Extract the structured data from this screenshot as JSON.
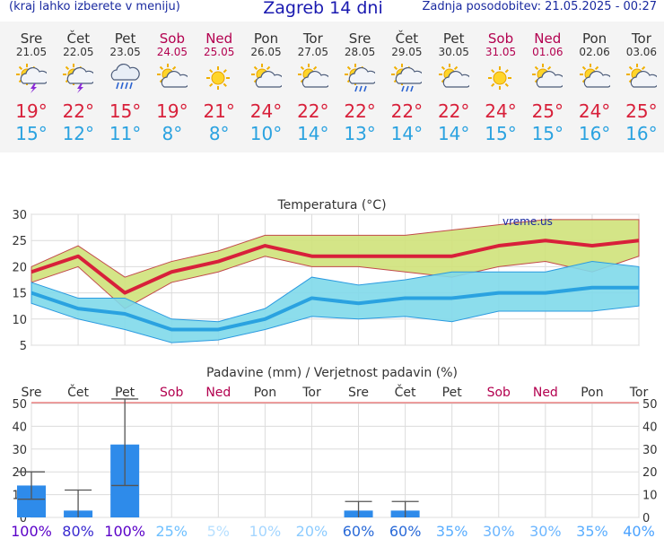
{
  "header": {
    "note": "(kraj lahko izberete v meniju)",
    "title": "Zagreb 14 dni",
    "updated": "Zadnja posodobitev: 21.05.2025 - 00:27"
  },
  "colors": {
    "max": "#d8203a",
    "min": "#2aa2e0",
    "weekend": "#b3004f",
    "temp_band": "#cfe27a",
    "min_band": "#7fd9ea",
    "bar": "#2e8bea"
  },
  "days": [
    {
      "name": "Sre",
      "date": "21.05",
      "icon": "sun-cloud-thunder-icon",
      "max": "19°",
      "min": "15°",
      "weekend": false
    },
    {
      "name": "Čet",
      "date": "22.05",
      "icon": "sun-cloud-thunder-icon",
      "max": "22°",
      "min": "12°",
      "weekend": false
    },
    {
      "name": "Pet",
      "date": "23.05",
      "icon": "cloud-rain-icon",
      "max": "15°",
      "min": "11°",
      "weekend": false
    },
    {
      "name": "Sob",
      "date": "24.05",
      "icon": "sun-cloud-icon",
      "max": "19°",
      "min": "8°",
      "weekend": true
    },
    {
      "name": "Ned",
      "date": "25.05",
      "icon": "sun-icon",
      "max": "21°",
      "min": "8°",
      "weekend": true
    },
    {
      "name": "Pon",
      "date": "26.05",
      "icon": "sun-cloud-icon",
      "max": "24°",
      "min": "10°",
      "weekend": false
    },
    {
      "name": "Tor",
      "date": "27.05",
      "icon": "sun-cloud-icon",
      "max": "22°",
      "min": "14°",
      "weekend": false
    },
    {
      "name": "Sre",
      "date": "28.05",
      "icon": "sun-cloud-rain-icon",
      "max": "22°",
      "min": "13°",
      "weekend": false
    },
    {
      "name": "Čet",
      "date": "29.05",
      "icon": "sun-cloud-rain-icon",
      "max": "22°",
      "min": "14°",
      "weekend": false
    },
    {
      "name": "Pet",
      "date": "30.05",
      "icon": "sun-cloud-icon",
      "max": "22°",
      "min": "14°",
      "weekend": false
    },
    {
      "name": "Sob",
      "date": "31.05",
      "icon": "sun-icon",
      "max": "24°",
      "min": "15°",
      "weekend": true
    },
    {
      "name": "Ned",
      "date": "01.06",
      "icon": "sun-cloud-icon",
      "max": "25°",
      "min": "15°",
      "weekend": true
    },
    {
      "name": "Pon",
      "date": "02.06",
      "icon": "sun-cloud-icon",
      "max": "24°",
      "min": "16°",
      "weekend": false
    },
    {
      "name": "Tor",
      "date": "03.06",
      "icon": "sun-cloud-icon",
      "max": "25°",
      "min": "16°",
      "weekend": false
    }
  ],
  "chart_data": [
    {
      "type": "line",
      "title": "Temperatura (°C)",
      "watermark": "vreme.us",
      "ylim": [
        5,
        30
      ],
      "yticks": [
        5,
        10,
        15,
        20,
        25,
        30
      ],
      "x": [
        0,
        1,
        2,
        3,
        4,
        5,
        6,
        7,
        8,
        9,
        10,
        11,
        12,
        13
      ],
      "series": [
        {
          "values": [
            19,
            22,
            15,
            19,
            21,
            24,
            22,
            22,
            22,
            22,
            24,
            25,
            24,
            25
          ]
        },
        {
          "values": [
            15,
            12,
            11,
            8,
            8,
            10,
            14,
            13,
            14,
            14,
            15,
            15,
            16,
            16
          ]
        },
        {
          "values_upper": [
            20,
            24,
            18,
            21,
            23,
            26,
            26,
            26,
            26,
            27,
            28,
            29,
            29,
            29
          ],
          "values_lower": [
            17,
            20,
            12,
            17,
            19,
            22,
            20,
            20,
            19,
            18,
            20,
            21,
            19,
            22
          ]
        },
        {
          "values_upper": [
            17,
            14,
            14,
            10,
            9.5,
            12,
            18,
            16.5,
            17.5,
            19,
            19,
            19,
            21,
            20
          ],
          "values_lower": [
            13,
            10,
            8,
            5.5,
            6,
            8,
            10.5,
            10,
            10.5,
            9.5,
            11.5,
            11.5,
            11.5,
            12.5
          ]
        }
      ],
      "grid": true
    },
    {
      "type": "bar",
      "title": "Padavine (mm) / Verjetnost padavin (%)",
      "ylim": [
        0,
        50
      ],
      "yticks": [
        0,
        10,
        20,
        30,
        40,
        50
      ],
      "categories": [
        "Sre",
        "Čet",
        "Pet",
        "Sob",
        "Ned",
        "Pon",
        "Tor",
        "Sre",
        "Čet",
        "Pet",
        "Sob",
        "Ned",
        "Pon",
        "Tor"
      ],
      "values": [
        14,
        3,
        32,
        0,
        0,
        0,
        0,
        3,
        3,
        0,
        0,
        0,
        0,
        0
      ],
      "error_high": [
        20,
        12,
        52,
        0,
        0,
        0,
        0,
        7,
        7,
        0,
        0,
        0,
        0,
        0
      ],
      "error_low": [
        8,
        0,
        14,
        0,
        0,
        0,
        0,
        0,
        0,
        0,
        0,
        0,
        0,
        0
      ],
      "probabilities": [
        "100%",
        "80%",
        "100%",
        "25%",
        "5%",
        "10%",
        "20%",
        "60%",
        "60%",
        "35%",
        "30%",
        "30%",
        "35%",
        "40%"
      ],
      "prob_colors": [
        "#5a00c8",
        "#3a2ad0",
        "#5a00c8",
        "#6fc0ff",
        "#b8e0ff",
        "#a5d6ff",
        "#8dccff",
        "#2a6ad8",
        "#2a6ad8",
        "#5aaeff",
        "#6cb6ff",
        "#6cb6ff",
        "#5aaeff",
        "#4aa2ff"
      ],
      "grid": true
    }
  ]
}
